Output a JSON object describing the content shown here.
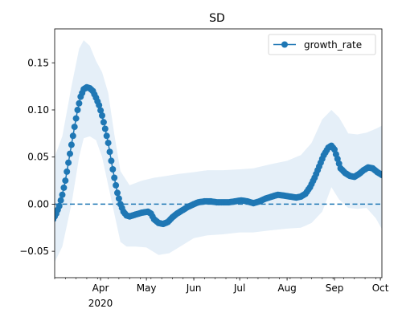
{
  "chart_data": {
    "type": "line",
    "title": "SD",
    "xlabel": "",
    "ylabel": "",
    "x_range": [
      "2020-03-02",
      "2020-10-02"
    ],
    "ylim": [
      -0.078,
      0.186
    ],
    "grid": false,
    "legend_position": "upper right",
    "x_ticks": [
      {
        "date": "2020-04-01",
        "label": "Apr",
        "sublabel": "2020"
      },
      {
        "date": "2020-05-01",
        "label": "May",
        "sublabel": ""
      },
      {
        "date": "2020-06-01",
        "label": "Jun",
        "sublabel": ""
      },
      {
        "date": "2020-07-01",
        "label": "Jul",
        "sublabel": ""
      },
      {
        "date": "2020-08-01",
        "label": "Aug",
        "sublabel": ""
      },
      {
        "date": "2020-09-01",
        "label": "Sep",
        "sublabel": ""
      },
      {
        "date": "2020-10-01",
        "label": "Oct",
        "sublabel": ""
      }
    ],
    "y_ticks": [
      {
        "value": -0.05,
        "label": "−0.05"
      },
      {
        "value": 0.0,
        "label": "0.00"
      },
      {
        "value": 0.05,
        "label": "0.05"
      },
      {
        "value": 0.1,
        "label": "0.10"
      },
      {
        "value": 0.15,
        "label": "0.15"
      }
    ],
    "reference_line": {
      "y": 0,
      "style": "dashed"
    },
    "colors": {
      "series": "#1f77b4",
      "band": "#dce9f5"
    },
    "series": [
      {
        "name": "growth_rate",
        "points": [
          [
            "2020-03-01",
            -0.016
          ],
          [
            "2020-03-03",
            -0.01
          ],
          [
            "2020-03-05",
            -0.002
          ],
          [
            "2020-03-07",
            0.01
          ],
          [
            "2020-03-09",
            0.025
          ],
          [
            "2020-03-11",
            0.044
          ],
          [
            "2020-03-13",
            0.063
          ],
          [
            "2020-03-15",
            0.082
          ],
          [
            "2020-03-17",
            0.1
          ],
          [
            "2020-03-19",
            0.114
          ],
          [
            "2020-03-21",
            0.122
          ],
          [
            "2020-03-23",
            0.124
          ],
          [
            "2020-03-25",
            0.123
          ],
          [
            "2020-03-27",
            0.12
          ],
          [
            "2020-03-29",
            0.113
          ],
          [
            "2020-03-31",
            0.105
          ],
          [
            "2020-04-02",
            0.094
          ],
          [
            "2020-04-04",
            0.08
          ],
          [
            "2020-04-06",
            0.065
          ],
          [
            "2020-04-08",
            0.046
          ],
          [
            "2020-04-10",
            0.028
          ],
          [
            "2020-04-12",
            0.012
          ],
          [
            "2020-04-14",
            0.0
          ],
          [
            "2020-04-16",
            -0.008
          ],
          [
            "2020-04-18",
            -0.012
          ],
          [
            "2020-04-20",
            -0.013
          ],
          [
            "2020-04-24",
            -0.011
          ],
          [
            "2020-04-28",
            -0.009
          ],
          [
            "2020-05-02",
            -0.008
          ],
          [
            "2020-05-04",
            -0.01
          ],
          [
            "2020-05-06",
            -0.016
          ],
          [
            "2020-05-09",
            -0.02
          ],
          [
            "2020-05-12",
            -0.021
          ],
          [
            "2020-05-15",
            -0.019
          ],
          [
            "2020-05-18",
            -0.014
          ],
          [
            "2020-05-21",
            -0.01
          ],
          [
            "2020-05-25",
            -0.006
          ],
          [
            "2020-05-28",
            -0.003
          ],
          [
            "2020-06-01",
            0.0
          ],
          [
            "2020-06-04",
            0.002
          ],
          [
            "2020-06-08",
            0.003
          ],
          [
            "2020-06-12",
            0.003
          ],
          [
            "2020-06-16",
            0.002
          ],
          [
            "2020-06-20",
            0.002
          ],
          [
            "2020-06-24",
            0.002
          ],
          [
            "2020-06-28",
            0.003
          ],
          [
            "2020-07-02",
            0.004
          ],
          [
            "2020-07-06",
            0.003
          ],
          [
            "2020-07-10",
            0.001
          ],
          [
            "2020-07-14",
            0.003
          ],
          [
            "2020-07-18",
            0.006
          ],
          [
            "2020-07-22",
            0.008
          ],
          [
            "2020-07-26",
            0.01
          ],
          [
            "2020-07-30",
            0.009
          ],
          [
            "2020-08-03",
            0.008
          ],
          [
            "2020-08-07",
            0.007
          ],
          [
            "2020-08-10",
            0.008
          ],
          [
            "2020-08-13",
            0.011
          ],
          [
            "2020-08-16",
            0.018
          ],
          [
            "2020-08-19",
            0.028
          ],
          [
            "2020-08-22",
            0.04
          ],
          [
            "2020-08-25",
            0.052
          ],
          [
            "2020-08-28",
            0.06
          ],
          [
            "2020-08-30",
            0.062
          ],
          [
            "2020-09-01",
            0.058
          ],
          [
            "2020-09-03",
            0.048
          ],
          [
            "2020-09-05",
            0.038
          ],
          [
            "2020-09-08",
            0.033
          ],
          [
            "2020-09-11",
            0.03
          ],
          [
            "2020-09-14",
            0.029
          ],
          [
            "2020-09-17",
            0.032
          ],
          [
            "2020-09-20",
            0.036
          ],
          [
            "2020-09-23",
            0.039
          ],
          [
            "2020-09-26",
            0.038
          ],
          [
            "2020-09-29",
            0.034
          ],
          [
            "2020-10-02",
            0.031
          ],
          [
            "2020-10-04",
            0.03
          ]
        ]
      }
    ],
    "band": {
      "upper": [
        [
          "2020-03-01",
          0.046
        ],
        [
          "2020-03-07",
          0.072
        ],
        [
          "2020-03-13",
          0.125
        ],
        [
          "2020-03-18",
          0.165
        ],
        [
          "2020-03-21",
          0.174
        ],
        [
          "2020-03-25",
          0.168
        ],
        [
          "2020-03-29",
          0.152
        ],
        [
          "2020-04-02",
          0.14
        ],
        [
          "2020-04-06",
          0.118
        ],
        [
          "2020-04-10",
          0.074
        ],
        [
          "2020-04-14",
          0.035
        ],
        [
          "2020-04-20",
          0.02
        ],
        [
          "2020-04-28",
          0.025
        ],
        [
          "2020-05-06",
          0.028
        ],
        [
          "2020-05-14",
          0.03
        ],
        [
          "2020-05-22",
          0.032
        ],
        [
          "2020-06-01",
          0.034
        ],
        [
          "2020-06-10",
          0.036
        ],
        [
          "2020-06-20",
          0.036
        ],
        [
          "2020-07-01",
          0.037
        ],
        [
          "2020-07-10",
          0.038
        ],
        [
          "2020-07-20",
          0.042
        ],
        [
          "2020-08-01",
          0.046
        ],
        [
          "2020-08-10",
          0.052
        ],
        [
          "2020-08-17",
          0.065
        ],
        [
          "2020-08-24",
          0.09
        ],
        [
          "2020-08-30",
          0.1
        ],
        [
          "2020-09-04",
          0.092
        ],
        [
          "2020-09-10",
          0.075
        ],
        [
          "2020-09-16",
          0.074
        ],
        [
          "2020-09-22",
          0.076
        ],
        [
          "2020-09-28",
          0.08
        ],
        [
          "2020-10-04",
          0.085
        ]
      ],
      "lower": [
        [
          "2020-03-01",
          -0.065
        ],
        [
          "2020-03-07",
          -0.045
        ],
        [
          "2020-03-13",
          0.0
        ],
        [
          "2020-03-18",
          0.05
        ],
        [
          "2020-03-21",
          0.07
        ],
        [
          "2020-03-25",
          0.072
        ],
        [
          "2020-03-29",
          0.068
        ],
        [
          "2020-04-02",
          0.05
        ],
        [
          "2020-04-06",
          0.02
        ],
        [
          "2020-04-10",
          -0.01
        ],
        [
          "2020-04-14",
          -0.04
        ],
        [
          "2020-04-18",
          -0.045
        ],
        [
          "2020-04-24",
          -0.045
        ],
        [
          "2020-05-01",
          -0.046
        ],
        [
          "2020-05-09",
          -0.054
        ],
        [
          "2020-05-16",
          -0.052
        ],
        [
          "2020-05-24",
          -0.044
        ],
        [
          "2020-06-01",
          -0.036
        ],
        [
          "2020-06-10",
          -0.033
        ],
        [
          "2020-06-20",
          -0.032
        ],
        [
          "2020-07-01",
          -0.03
        ],
        [
          "2020-07-10",
          -0.03
        ],
        [
          "2020-07-20",
          -0.028
        ],
        [
          "2020-08-01",
          -0.026
        ],
        [
          "2020-08-10",
          -0.025
        ],
        [
          "2020-08-17",
          -0.02
        ],
        [
          "2020-08-24",
          -0.008
        ],
        [
          "2020-08-30",
          0.018
        ],
        [
          "2020-09-04",
          0.005
        ],
        [
          "2020-09-10",
          -0.004
        ],
        [
          "2020-09-16",
          -0.005
        ],
        [
          "2020-09-22",
          -0.004
        ],
        [
          "2020-09-28",
          -0.015
        ],
        [
          "2020-10-04",
          -0.032
        ]
      ]
    }
  }
}
